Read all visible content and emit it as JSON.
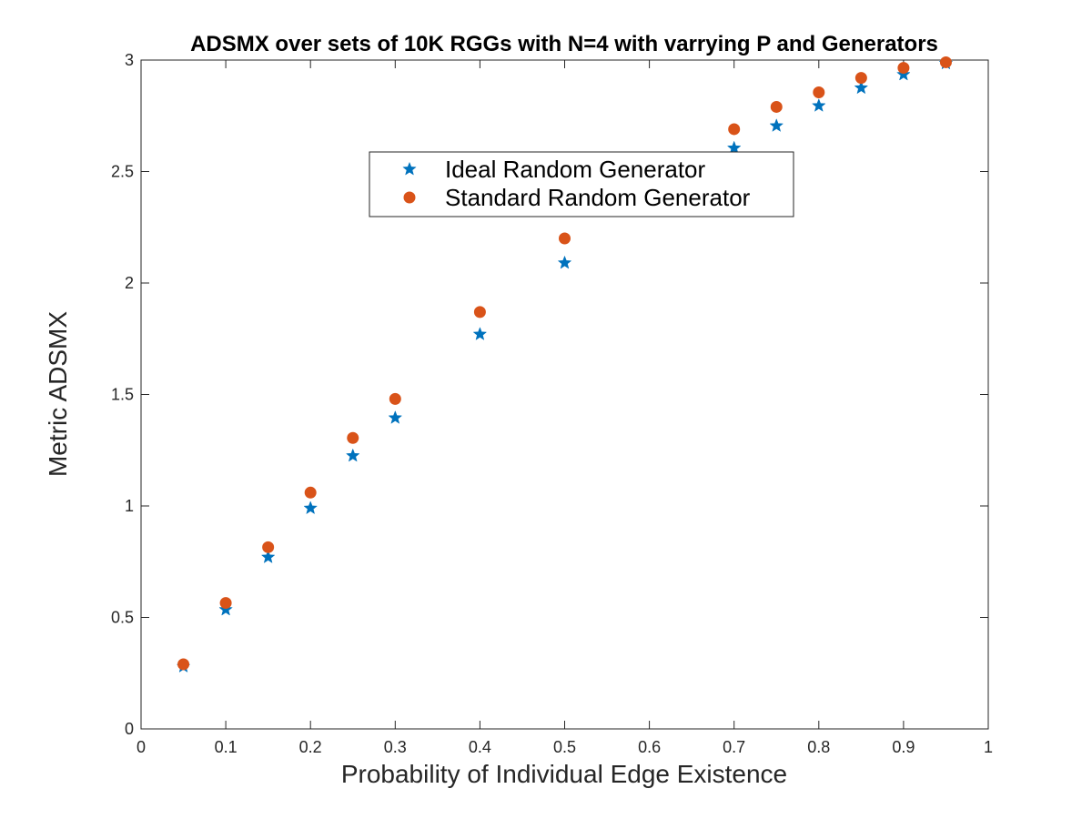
{
  "chart_data": {
    "type": "scatter",
    "title": "ADSMX over sets of 10K RGGs with N=4 with varrying P and Generators",
    "xlabel": "Probability of Individual Edge Existence",
    "ylabel": "Metric ADSMX",
    "xlim": [
      0,
      1
    ],
    "ylim": [
      0,
      3
    ],
    "xticks": [
      0,
      0.1,
      0.2,
      0.3,
      0.4,
      0.5,
      0.6,
      0.7,
      0.8,
      0.9,
      1
    ],
    "xtick_labels": [
      "0",
      "0.1",
      "0.2",
      "0.3",
      "0.4",
      "0.5",
      "0.6",
      "0.7",
      "0.8",
      "0.9",
      "1"
    ],
    "yticks": [
      0,
      0.5,
      1,
      1.5,
      2,
      2.5,
      3
    ],
    "ytick_labels": [
      "0",
      "0.5",
      "1",
      "1.5",
      "2",
      "2.5",
      "3"
    ],
    "grid": false,
    "legend_position": "upper-center",
    "series": [
      {
        "name": "Ideal Random Generator",
        "marker": "star",
        "color": "#0072BD",
        "x": [
          0.05,
          0.1,
          0.15,
          0.2,
          0.25,
          0.3,
          0.4,
          0.5,
          0.7,
          0.75,
          0.8,
          0.85,
          0.9,
          0.95
        ],
        "y": [
          0.28,
          0.535,
          0.77,
          0.99,
          1.225,
          1.395,
          1.77,
          2.09,
          2.605,
          2.705,
          2.795,
          2.875,
          2.935,
          2.985
        ]
      },
      {
        "name": "Standard Random Generator",
        "marker": "circle",
        "color": "#D95319",
        "x": [
          0.05,
          0.1,
          0.15,
          0.2,
          0.25,
          0.3,
          0.4,
          0.5,
          0.7,
          0.75,
          0.8,
          0.85,
          0.9,
          0.95
        ],
        "y": [
          0.29,
          0.565,
          0.815,
          1.06,
          1.305,
          1.48,
          1.87,
          2.2,
          2.69,
          2.79,
          2.855,
          2.92,
          2.965,
          2.99
        ]
      }
    ]
  }
}
